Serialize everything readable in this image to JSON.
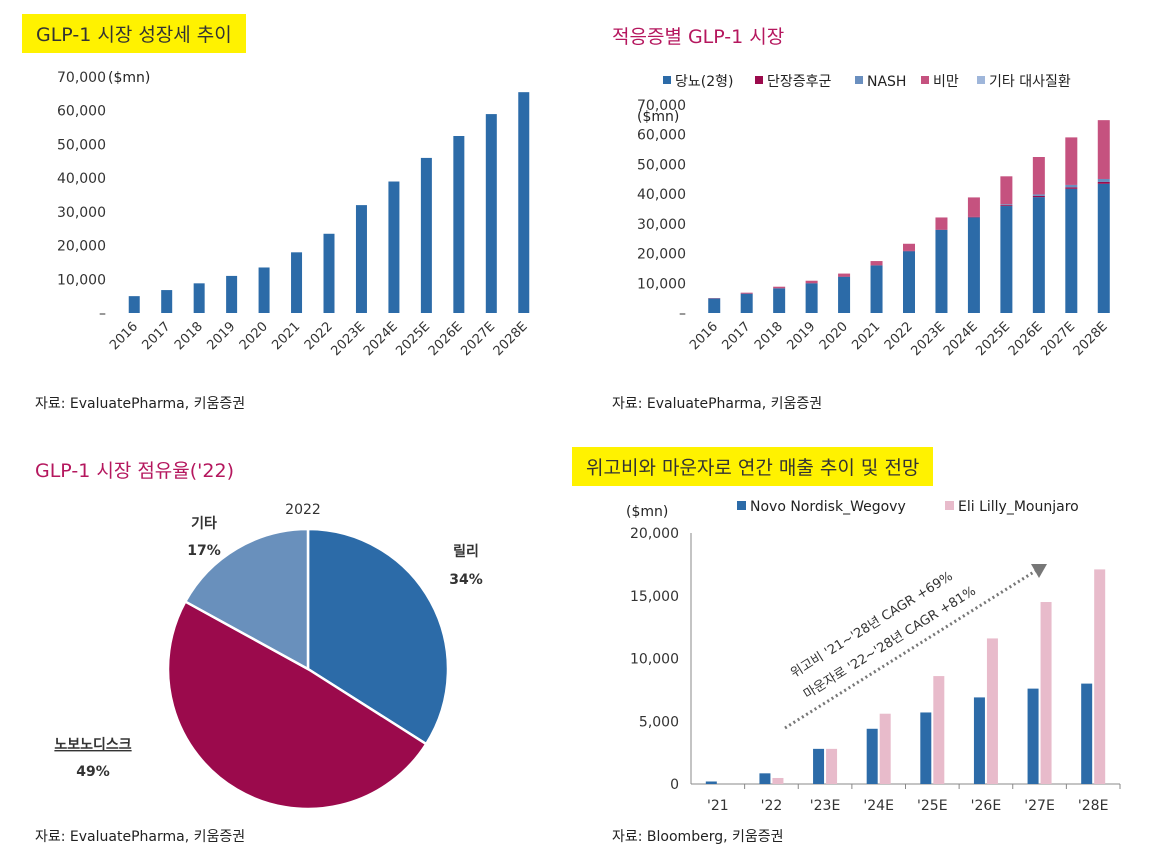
{
  "panels": {
    "p1": {
      "title": "GLP-1 시장 성장세 추이",
      "source": "자료: EvaluatePharma, 키움증권"
    },
    "p2": {
      "title": "적응증별 GLP-1 시장",
      "source": "자료: EvaluatePharma, 키움증권"
    },
    "p3": {
      "title": "GLP-1 시장 점유율('22)",
      "source": "자료: EvaluatePharma, 키움증권"
    },
    "p4": {
      "title": "위고비와 마운자로 연간 매출 추이 및 전망",
      "source": "자료: Bloomberg, 키움증권"
    }
  },
  "colors": {
    "blue": "#2C6BA8",
    "maroon": "#9B0A4C",
    "nash": "#6A8FBF",
    "obesity": "#C5527F",
    "other": "#9FB6DA",
    "pie_other": "#6990BC",
    "pink": "#E8BBCB",
    "title_yellow": "#FFF200",
    "title_pink": "#B5175E"
  },
  "chart_data": [
    {
      "id": "p1",
      "type": "bar",
      "unit": "($mn)",
      "categories": [
        "2016",
        "2017",
        "2018",
        "2019",
        "2020",
        "2021",
        "2022",
        "2023E",
        "2024E",
        "2025E",
        "2026E",
        "2027E",
        "2028E"
      ],
      "values": [
        5000,
        6800,
        8800,
        11000,
        13500,
        18000,
        23500,
        32000,
        39000,
        46000,
        52500,
        59000,
        65500
      ],
      "ylim": [
        0,
        70000
      ],
      "yticks": [
        0,
        10000,
        20000,
        30000,
        40000,
        50000,
        60000,
        70000
      ],
      "ytick_labels": [
        "–",
        "10,000",
        "20,000",
        "30,000",
        "40,000",
        "50,000",
        "60,000",
        "70,000"
      ]
    },
    {
      "id": "p2",
      "type": "bar",
      "stacked": true,
      "unit": "($mn)",
      "legend_position": "top",
      "categories": [
        "2016",
        "2017",
        "2018",
        "2019",
        "2020",
        "2021",
        "2022",
        "2023E",
        "2024E",
        "2025E",
        "2026E",
        "2027E",
        "2028E"
      ],
      "series": [
        {
          "name": "당뇨(2형)",
          "color": "#2C6BA8",
          "values": [
            4900,
            6500,
            8300,
            10000,
            12200,
            16000,
            20800,
            28000,
            32200,
            36000,
            39000,
            41800,
            43500
          ]
        },
        {
          "name": "단장증후군",
          "color": "#9B0A4C",
          "values": [
            30,
            40,
            50,
            60,
            70,
            80,
            100,
            150,
            200,
            300,
            400,
            500,
            600
          ]
        },
        {
          "name": "NASH",
          "color": "#6A8FBF",
          "values": [
            0,
            0,
            0,
            0,
            0,
            0,
            0,
            0,
            0,
            300,
            500,
            800,
            1000
          ]
        },
        {
          "name": "비만",
          "color": "#C5527F",
          "values": [
            100,
            300,
            500,
            800,
            1000,
            1400,
            2400,
            4000,
            6500,
            9400,
            12600,
            16000,
            19800
          ]
        },
        {
          "name": "기타 대사질환",
          "color": "#9FB6DA",
          "values": [
            0,
            0,
            0,
            0,
            0,
            0,
            0,
            0,
            0,
            0,
            0,
            0,
            0
          ]
        }
      ],
      "ylim": [
        0,
        70000
      ],
      "yticks": [
        0,
        10000,
        20000,
        30000,
        40000,
        50000,
        60000,
        70000
      ],
      "ytick_labels": [
        "–",
        "10,000",
        "20,000",
        "30,000",
        "40,000",
        "50,000",
        "60,000",
        "70,000"
      ]
    },
    {
      "id": "p3",
      "type": "pie",
      "title": "2022",
      "slices": [
        {
          "name": "릴리",
          "value": 34,
          "label": "34%",
          "color": "#2C6BA8"
        },
        {
          "name": "노보노디스크",
          "value": 49,
          "label": "49%",
          "color": "#9B0A4C"
        },
        {
          "name": "기타",
          "value": 17,
          "label": "17%",
          "color": "#6990BC"
        }
      ]
    },
    {
      "id": "p4",
      "type": "bar",
      "unit": "($mn)",
      "legend_position": "top",
      "categories": [
        "'21",
        "'22",
        "'23E",
        "'24E",
        "'25E",
        "'26E",
        "'27E",
        "'28E"
      ],
      "series": [
        {
          "name": "Novo Nordisk_Wegovy",
          "color": "#2C6BA8",
          "values": [
            200,
            850,
            2800,
            4400,
            5700,
            6900,
            7600,
            8000
          ]
        },
        {
          "name": "Eli Lilly_Mounjaro",
          "color": "#E8BBCB",
          "values": [
            0,
            480,
            2800,
            5600,
            8600,
            11600,
            14500,
            17100
          ]
        }
      ],
      "ylim": [
        0,
        20000
      ],
      "yticks": [
        0,
        5000,
        10000,
        15000,
        20000
      ],
      "ytick_labels": [
        "0",
        "5,000",
        "10,000",
        "15,000",
        "20,000"
      ],
      "annotations": [
        "위고비 '21~'28년 CAGR +69%",
        "마운자로 '22~'28년 CAGR +81%"
      ]
    }
  ]
}
